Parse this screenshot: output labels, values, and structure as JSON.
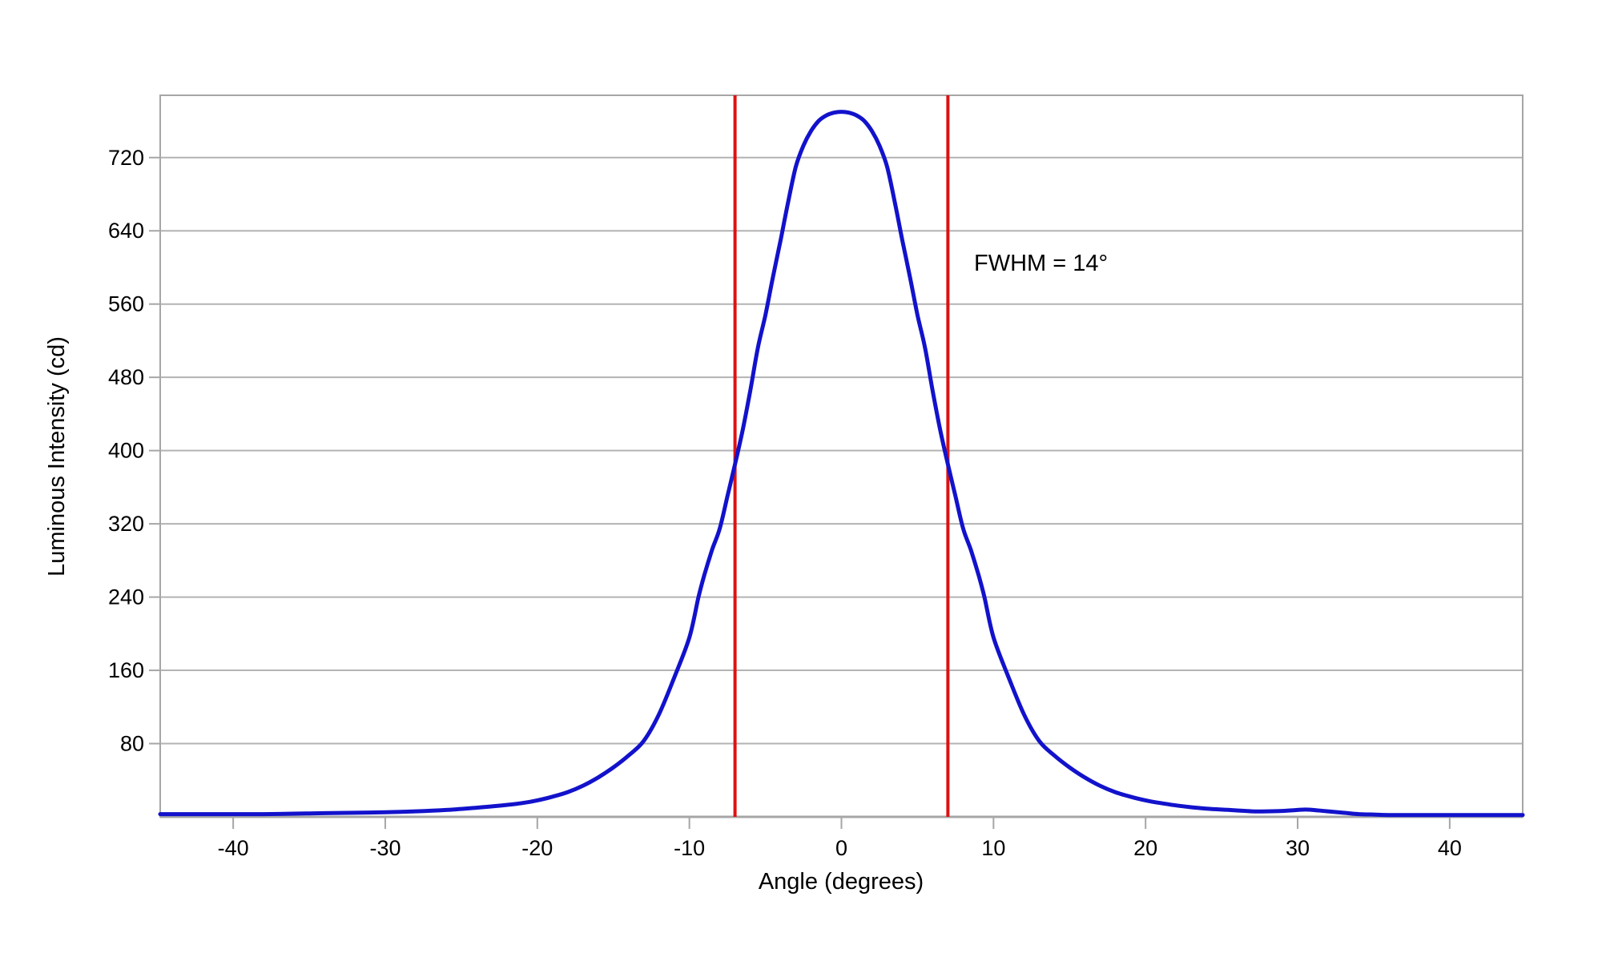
{
  "chart_data": {
    "type": "line",
    "title": "",
    "xlabel": "Angle (degrees)",
    "ylabel": "Luminous Intensity (cd)",
    "annotation": "FWHM = 14°",
    "xlim": [
      -44.8,
      44.8
    ],
    "ylim": [
      0,
      788
    ],
    "x_ticks": [
      -40,
      -30,
      -20,
      -10,
      0,
      10,
      20,
      30,
      40
    ],
    "y_ticks": [
      80,
      160,
      240,
      320,
      400,
      480,
      560,
      640,
      720
    ],
    "grid": "horizontal-only",
    "legend": "none",
    "fwhm_marker_angles_deg": [
      -7,
      7
    ],
    "series": [
      {
        "name": "luminous-intensity",
        "points": [
          [
            -44.8,
            3
          ],
          [
            -42,
            3
          ],
          [
            -40,
            3
          ],
          [
            -38,
            3
          ],
          [
            -36,
            3.5
          ],
          [
            -34,
            4
          ],
          [
            -32,
            4.5
          ],
          [
            -30,
            5
          ],
          [
            -28,
            6
          ],
          [
            -26,
            7.5
          ],
          [
            -24,
            10
          ],
          [
            -22,
            13
          ],
          [
            -21,
            15
          ],
          [
            -20,
            18
          ],
          [
            -19,
            22
          ],
          [
            -18,
            27
          ],
          [
            -17,
            34
          ],
          [
            -16,
            43
          ],
          [
            -15,
            54
          ],
          [
            -14,
            67
          ],
          [
            -13,
            83
          ],
          [
            -12,
            112
          ],
          [
            -11,
            152
          ],
          [
            -10,
            196
          ],
          [
            -9.4,
            240
          ],
          [
            -9,
            265
          ],
          [
            -8.5,
            292
          ],
          [
            -8,
            315
          ],
          [
            -7.5,
            350
          ],
          [
            -7,
            385
          ],
          [
            -6.5,
            422
          ],
          [
            -6,
            465
          ],
          [
            -5.5,
            512
          ],
          [
            -5,
            548
          ],
          [
            -4.5,
            590
          ],
          [
            -4,
            630
          ],
          [
            -3.5,
            672
          ],
          [
            -3,
            710
          ],
          [
            -2.5,
            733
          ],
          [
            -2,
            749
          ],
          [
            -1.5,
            760
          ],
          [
            -1,
            766
          ],
          [
            -0.5,
            769
          ],
          [
            0,
            770
          ],
          [
            0.5,
            769
          ],
          [
            1,
            766
          ],
          [
            1.5,
            760
          ],
          [
            2,
            749
          ],
          [
            2.5,
            733
          ],
          [
            3,
            710
          ],
          [
            3.5,
            672
          ],
          [
            4,
            630
          ],
          [
            4.5,
            590
          ],
          [
            5,
            548
          ],
          [
            5.5,
            512
          ],
          [
            6,
            465
          ],
          [
            6.5,
            422
          ],
          [
            7,
            385
          ],
          [
            7.5,
            350
          ],
          [
            8,
            315
          ],
          [
            8.5,
            292
          ],
          [
            9,
            265
          ],
          [
            9.4,
            240
          ],
          [
            10,
            196
          ],
          [
            11,
            152
          ],
          [
            12,
            112
          ],
          [
            13,
            83
          ],
          [
            14,
            67
          ],
          [
            15,
            54
          ],
          [
            16,
            43
          ],
          [
            17,
            34
          ],
          [
            18,
            27
          ],
          [
            19,
            22
          ],
          [
            20,
            18
          ],
          [
            21,
            15
          ],
          [
            22,
            12.5
          ],
          [
            23,
            10.5
          ],
          [
            24,
            9
          ],
          [
            25,
            8
          ],
          [
            26,
            7
          ],
          [
            27,
            6
          ],
          [
            28,
            6
          ],
          [
            29,
            6.5
          ],
          [
            30,
            7.5
          ],
          [
            30.5,
            8
          ],
          [
            31,
            7.5
          ],
          [
            32,
            6
          ],
          [
            33,
            4.5
          ],
          [
            34,
            3
          ],
          [
            35,
            2.5
          ],
          [
            36,
            2
          ],
          [
            38,
            2
          ],
          [
            40,
            2
          ],
          [
            42,
            2
          ],
          [
            44.8,
            2
          ]
        ]
      }
    ]
  },
  "colors": {
    "curve": "#1212cc",
    "fwhm_line": "#dd1111",
    "gridline": "#b3b3b3",
    "border": "#a6a6a6",
    "tick": "#a6a6a6",
    "text": "#000000",
    "background": "#ffffff"
  }
}
